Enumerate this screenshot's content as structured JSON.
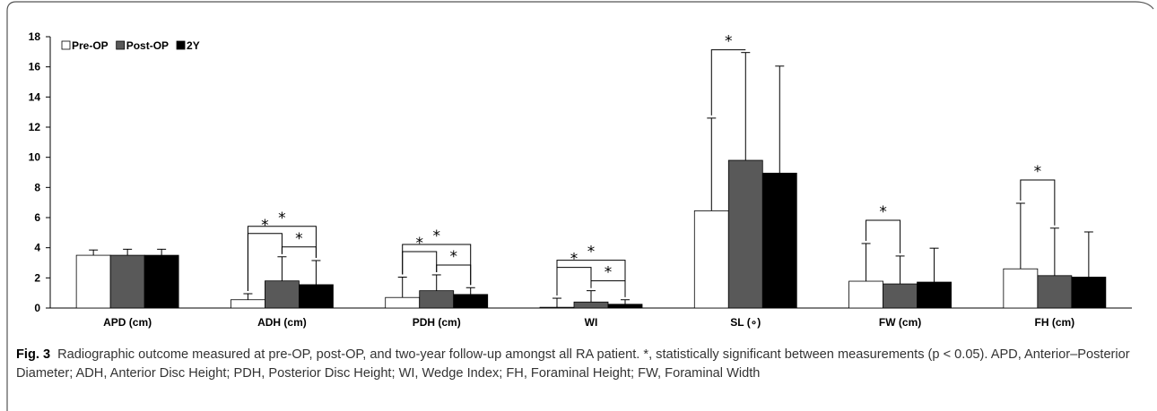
{
  "chart_data": {
    "type": "bar",
    "categories": [
      "APD (cm)",
      "ADH (cm)",
      "PDH (cm)",
      "WI",
      "SL (∘)",
      "FW (cm)",
      "FH (cm)"
    ],
    "series": [
      {
        "name": "Pre-OP",
        "color": "#ffffff",
        "values": [
          3.5,
          0.55,
          0.7,
          0.05,
          6.45,
          1.78,
          2.6
        ],
        "error": [
          0.35,
          0.4,
          1.35,
          0.6,
          6.15,
          2.5,
          4.35
        ]
      },
      {
        "name": "Post-OP",
        "color": "#595959",
        "values": [
          3.5,
          1.8,
          1.15,
          0.4,
          9.8,
          1.6,
          2.15
        ],
        "error": [
          0.4,
          1.6,
          1.05,
          0.75,
          7.15,
          1.85,
          3.15
        ]
      },
      {
        "name": "2Y",
        "color": "#000000",
        "values": [
          3.5,
          1.55,
          0.9,
          0.25,
          8.95,
          1.72,
          2.05
        ],
        "error": [
          0.4,
          1.6,
          0.45,
          0.3,
          7.1,
          2.25,
          3.0
        ]
      }
    ],
    "ylim": [
      0,
      18
    ],
    "yticks": [
      0,
      2,
      4,
      6,
      8,
      10,
      12,
      14,
      16,
      18
    ],
    "legend_position": "top-left",
    "grid": false,
    "significance": [
      {
        "category": 1,
        "from": 0,
        "to": 1,
        "level": 1,
        "label": "*"
      },
      {
        "category": 1,
        "from": 1,
        "to": 2,
        "level": 0,
        "label": "*"
      },
      {
        "category": 1,
        "from": 0,
        "to": 2,
        "level": 2,
        "label": "*"
      },
      {
        "category": 2,
        "from": 0,
        "to": 1,
        "level": 1,
        "label": "*"
      },
      {
        "category": 2,
        "from": 1,
        "to": 2,
        "level": 0,
        "label": "*"
      },
      {
        "category": 2,
        "from": 0,
        "to": 2,
        "level": 2,
        "label": "*"
      },
      {
        "category": 3,
        "from": 0,
        "to": 1,
        "level": 1,
        "label": "*"
      },
      {
        "category": 3,
        "from": 1,
        "to": 2,
        "level": 0,
        "label": "*"
      },
      {
        "category": 3,
        "from": 0,
        "to": 2,
        "level": 2,
        "label": "*"
      },
      {
        "category": 4,
        "from": 0,
        "to": 1,
        "level": 3,
        "label": "*"
      },
      {
        "category": 5,
        "from": 0,
        "to": 1,
        "level": 1,
        "label": "*"
      },
      {
        "category": 6,
        "from": 0,
        "to": 1,
        "level": 1,
        "label": "*"
      }
    ]
  },
  "caption": {
    "label": "Fig. 3",
    "text": "Radiographic outcome measured at pre-OP, post-OP, and two-year follow-up amongst all RA patient. *, statistically significant between measurements (p < 0.05). APD, Anterior–Posterior Diameter; ADH, Anterior Disc Height; PDH, Posterior Disc Height; WI, Wedge Index; FH, Foraminal Height; FW, Foraminal Width"
  }
}
